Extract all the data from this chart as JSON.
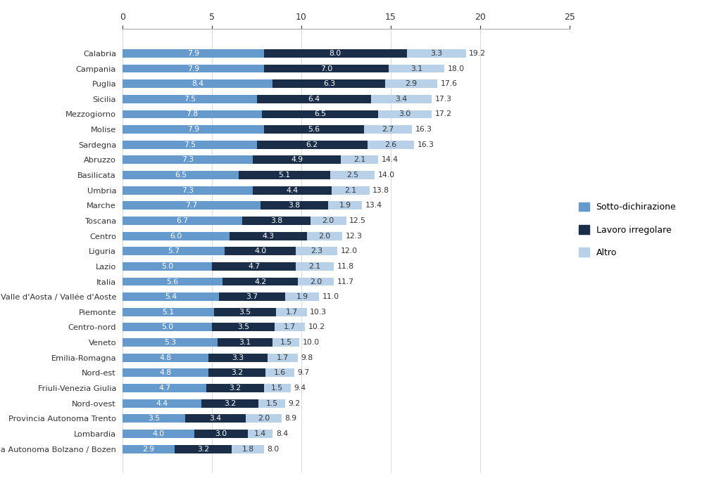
{
  "categories": [
    "Calabria",
    "Campania",
    "Puglia",
    "Sicilia",
    "Mezzogiorno",
    "Molise",
    "Sardegna",
    "Abruzzo",
    "Basilicata",
    "Umbria",
    "Marche",
    "Toscana",
    "Centro",
    "Liguria",
    "Lazio",
    "Italia",
    "Valle d'Aosta / Vallée d'Aoste",
    "Piemonte",
    "Centro-nord",
    "Veneto",
    "Emilia-Romagna",
    "Nord-est",
    "Friuli-Venezia Giulia",
    "Nord-ovest",
    "Provincia Autonoma Trento",
    "Lombardia",
    "Provincia Autonoma Bolzano / Bozen"
  ],
  "sotto_dichirazione": [
    7.9,
    7.9,
    8.4,
    7.5,
    7.8,
    7.9,
    7.5,
    7.3,
    6.5,
    7.3,
    7.7,
    6.7,
    6.0,
    5.7,
    5.0,
    5.6,
    5.4,
    5.1,
    5.0,
    5.3,
    4.8,
    4.8,
    4.7,
    4.4,
    3.5,
    4.0,
    2.9
  ],
  "lavoro_irregolare": [
    8.0,
    7.0,
    6.3,
    6.4,
    6.5,
    5.6,
    6.2,
    4.9,
    5.1,
    4.4,
    3.8,
    3.8,
    4.3,
    4.0,
    4.7,
    4.2,
    3.7,
    3.5,
    3.5,
    3.1,
    3.3,
    3.2,
    3.2,
    3.2,
    3.4,
    3.0,
    3.2
  ],
  "altro": [
    3.3,
    3.1,
    2.9,
    3.4,
    3.0,
    2.7,
    2.6,
    2.1,
    2.5,
    2.1,
    1.9,
    2.0,
    2.0,
    2.3,
    2.1,
    2.0,
    1.9,
    1.7,
    1.7,
    1.5,
    1.7,
    1.6,
    1.5,
    1.5,
    2.0,
    1.4,
    1.8
  ],
  "totals": [
    19.2,
    18.0,
    17.6,
    17.3,
    17.2,
    16.3,
    16.3,
    14.4,
    14.0,
    13.8,
    13.4,
    12.5,
    12.3,
    12.0,
    11.8,
    11.7,
    11.0,
    10.3,
    10.2,
    10.0,
    9.8,
    9.7,
    9.4,
    9.2,
    8.9,
    8.4,
    8.0
  ],
  "color_sotto": "#6699cc",
  "color_lavoro": "#1a2e4a",
  "color_altro": "#b8d0e8",
  "legend_labels": [
    "Sotto-dichirazione",
    "Lavoro irregolare",
    "Altro"
  ],
  "xlim": [
    0,
    25
  ],
  "xticks": [
    0,
    5,
    10,
    15,
    20,
    25
  ],
  "bar_height": 0.55,
  "figsize": [
    10.24,
    6.87
  ],
  "dpi": 100
}
